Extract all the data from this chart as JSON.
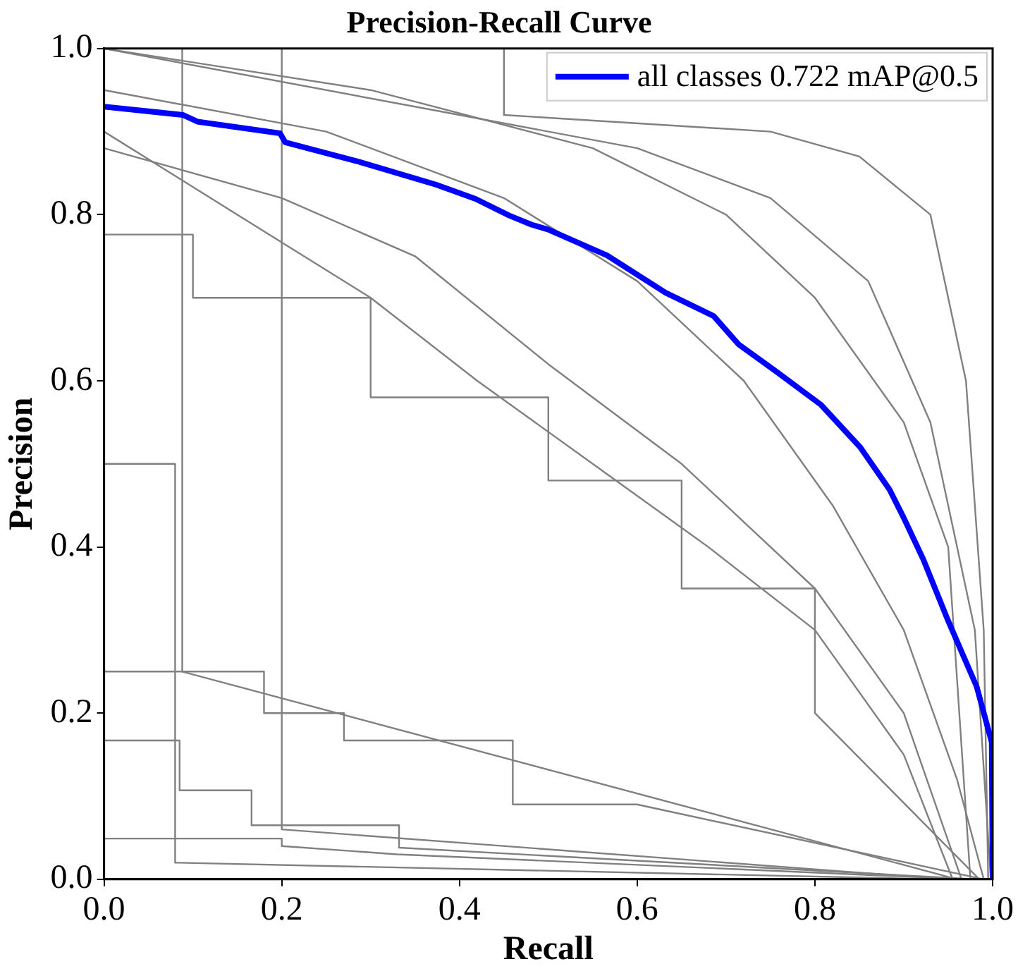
{
  "chart_data": {
    "type": "line",
    "title": "Precision-Recall Curve",
    "xlabel": "Recall",
    "ylabel": "Precision",
    "xlim": [
      0,
      1
    ],
    "ylim": [
      0,
      1
    ],
    "xticks": [
      {
        "value": 0,
        "label": "0.0"
      },
      {
        "value": 0.2,
        "label": "0.2"
      },
      {
        "value": 0.4,
        "label": "0.4"
      },
      {
        "value": 0.6,
        "label": "0.6"
      },
      {
        "value": 0.8,
        "label": "0.8"
      },
      {
        "value": 1,
        "label": "1.0"
      }
    ],
    "yticks": [
      {
        "value": 0,
        "label": "0.0"
      },
      {
        "value": 0.2,
        "label": "0.2"
      },
      {
        "value": 0.4,
        "label": "0.4"
      },
      {
        "value": 0.6,
        "label": "0.6"
      },
      {
        "value": 0.8,
        "label": "0.8"
      },
      {
        "value": 1,
        "label": "1.0"
      }
    ],
    "grid": false,
    "legend": "top right",
    "marker": "none",
    "line_style": "solid",
    "series": [
      {
        "color": "#808080",
        "x": [
          0,
          0.18,
          0.18,
          0.27,
          0.27,
          0.46,
          0.46,
          0.6,
          0.99
        ],
        "values": [
          0.25,
          0.25,
          0.2,
          0.2,
          0.167,
          0.167,
          0.09,
          0.09,
          0
        ]
      },
      {
        "color": "#808080",
        "x": [
          0,
          0.085,
          0.085,
          0.166,
          0.166,
          0.332,
          0.332,
          0.98
        ],
        "values": [
          0.167,
          0.167,
          0.107,
          0.107,
          0.065,
          0.065,
          0.038,
          0
        ]
      },
      {
        "color": "#808080",
        "x": [
          0,
          0.2,
          0.2,
          0.33,
          0.97
        ],
        "values": [
          0.049,
          0.049,
          0.04,
          0.03,
          0
        ]
      },
      {
        "color": "#808080",
        "x": [
          0,
          0.088,
          0.088,
          0.96
        ],
        "values": [
          1,
          1,
          0.25,
          0
        ]
      },
      {
        "color": "#808080",
        "x": [
          0,
          0.2,
          0.2,
          0.95
        ],
        "values": [
          1,
          1,
          0.06,
          0
        ]
      },
      {
        "color": "#808080",
        "x": [
          0,
          0.08,
          0.08,
          0.94
        ],
        "values": [
          0.5,
          0.5,
          0.02,
          0
        ]
      },
      {
        "color": "#808080",
        "x": [
          0,
          0.1,
          0.1,
          0.3,
          0.3,
          0.5,
          0.5,
          0.65,
          0.65,
          0.8,
          0.8,
          0.985
        ],
        "values": [
          0.776,
          0.776,
          0.7,
          0.7,
          0.58,
          0.58,
          0.48,
          0.48,
          0.35,
          0.35,
          0.2,
          0
        ]
      },
      {
        "color": "#808080",
        "x": [
          0,
          0.45,
          0.45,
          0.75,
          0.85,
          0.93,
          0.97,
          0.99,
          0.995
        ],
        "values": [
          1,
          1,
          0.92,
          0.9,
          0.87,
          0.8,
          0.6,
          0.3,
          0
        ]
      },
      {
        "color": "#808080",
        "x": [
          0,
          0.3,
          0.55,
          0.7,
          0.8,
          0.9,
          0.95,
          0.975
        ],
        "values": [
          1,
          0.95,
          0.88,
          0.8,
          0.7,
          0.55,
          0.4,
          0
        ]
      },
      {
        "color": "#808080",
        "x": [
          0,
          0.2,
          0.35,
          0.5,
          0.65,
          0.8,
          0.9,
          0.965
        ],
        "values": [
          0.88,
          0.82,
          0.75,
          0.62,
          0.5,
          0.35,
          0.2,
          0
        ]
      },
      {
        "color": "#808080",
        "x": [
          0,
          0.25,
          0.45,
          0.6,
          0.72,
          0.82,
          0.9,
          0.96,
          0.99
        ],
        "values": [
          0.95,
          0.9,
          0.82,
          0.72,
          0.6,
          0.45,
          0.3,
          0.12,
          0
        ]
      },
      {
        "color": "#808080",
        "x": [
          0,
          0.4,
          0.6,
          0.75,
          0.86,
          0.93,
          0.98,
          0.998
        ],
        "values": [
          1,
          0.92,
          0.88,
          0.82,
          0.72,
          0.55,
          0.3,
          0
        ]
      },
      {
        "color": "#808080",
        "x": [
          0,
          0.15,
          0.3,
          0.42,
          0.55,
          0.68,
          0.8,
          0.9,
          0.955
        ],
        "values": [
          0.9,
          0.8,
          0.7,
          0.6,
          0.5,
          0.4,
          0.3,
          0.15,
          0
        ]
      },
      {
        "name": "all classes 0.722 mAP@0.5",
        "color": "#0000ff",
        "x": [
          0,
          0.089,
          0.105,
          0.198,
          0.204,
          0.286,
          0.374,
          0.418,
          0.456,
          0.481,
          0.5,
          0.566,
          0.632,
          0.686,
          0.714,
          0.758,
          0.807,
          0.851,
          0.884,
          0.9,
          0.922,
          0.95,
          0.982,
          0.999,
          1
        ],
        "values": [
          0.93,
          0.92,
          0.912,
          0.898,
          0.887,
          0.864,
          0.836,
          0.819,
          0.799,
          0.788,
          0.782,
          0.751,
          0.706,
          0.678,
          0.644,
          0.61,
          0.571,
          0.52,
          0.469,
          0.435,
          0.385,
          0.311,
          0.232,
          0.165,
          0
        ]
      }
    ]
  }
}
